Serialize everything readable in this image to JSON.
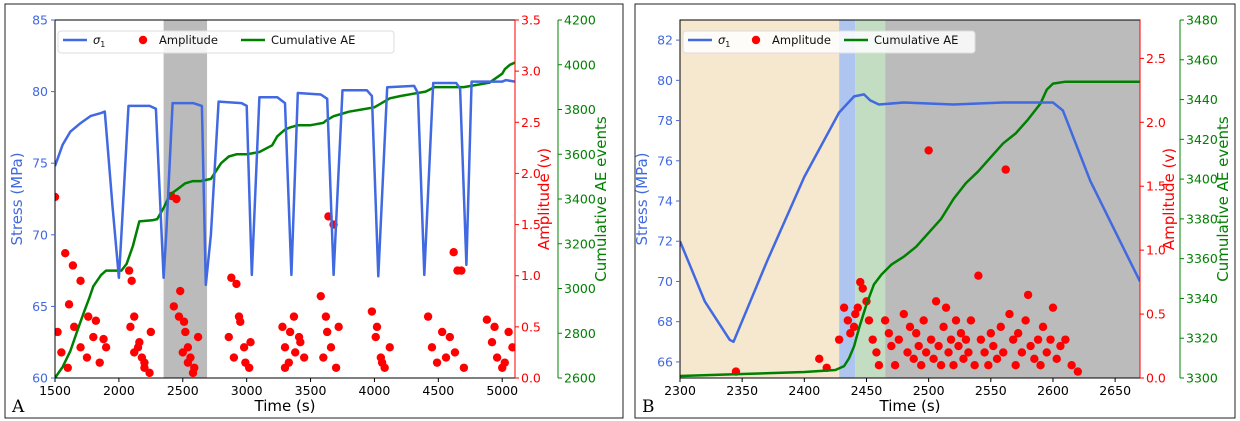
{
  "colors": {
    "stress": "#4169e1",
    "amplitude": "#ff0000",
    "cumulative": "#008000",
    "shade_gray": "#bbbbbb",
    "shade_tan": "#f6e7cf",
    "shade_blue": "#aec6ef",
    "shade_green": "#c3ddc3"
  },
  "chart_data": [
    {
      "panel_label": "A",
      "type": "line",
      "xlabel": "Time (s)",
      "xlim": [
        1500,
        5100
      ],
      "xticks": [
        1500,
        2000,
        2500,
        3000,
        3500,
        4000,
        4500,
        5000
      ],
      "y_left": {
        "label": "Stress (MPa)",
        "lim": [
          60,
          85
        ],
        "ticks": [
          60,
          65,
          70,
          75,
          80,
          85
        ]
      },
      "y_right_1": {
        "label": "Amplitude (v)",
        "lim": [
          0,
          3.5
        ],
        "ticks": [
          "0.0",
          "0.5",
          "1.0",
          "1.5",
          "2.0",
          "2.5",
          "3.0",
          "3.5"
        ]
      },
      "y_right_2": {
        "label": "Cumulative AE events",
        "lim": [
          2600,
          4200
        ],
        "ticks": [
          2600,
          2800,
          3000,
          3200,
          3400,
          3600,
          3800,
          4000,
          4200
        ]
      },
      "legend": [
        "σ1",
        "Amplitude",
        "Cumulative AE"
      ],
      "legend_position": "upper",
      "shaded_regions": [
        {
          "x": [
            2350,
            2690
          ],
          "color": "gray"
        }
      ],
      "series": [
        {
          "name": "σ1",
          "axis": "left",
          "style": "line",
          "x": [
            1500,
            1560,
            1620,
            1700,
            1780,
            1860,
            1890,
            1950,
            2000,
            2020,
            2075,
            2240,
            2290,
            2350,
            2370,
            2420,
            2580,
            2650,
            2680,
            2720,
            2780,
            2960,
            3000,
            3040,
            3100,
            3240,
            3300,
            3350,
            3400,
            3580,
            3630,
            3680,
            3750,
            3940,
            3980,
            4030,
            4100,
            4310,
            4340,
            4390,
            4460,
            4640,
            4670,
            4720,
            4760,
            5000,
            5030,
            5100
          ],
          "y": [
            74.8,
            76.3,
            77.2,
            77.8,
            78.3,
            78.5,
            78.6,
            72.0,
            67.0,
            70.0,
            79.0,
            79.0,
            78.8,
            67.0,
            70.0,
            79.2,
            79.2,
            79.0,
            66.5,
            70.0,
            79.3,
            79.2,
            79.0,
            67.2,
            79.6,
            79.6,
            79.2,
            67.2,
            79.9,
            79.8,
            79.5,
            67.2,
            80.1,
            80.1,
            79.7,
            67.1,
            80.3,
            80.4,
            79.9,
            67.2,
            80.6,
            80.6,
            80.2,
            67.9,
            80.7,
            80.7,
            80.8,
            80.7
          ]
        },
        {
          "name": "Amplitude",
          "axis": "right_1",
          "style": "points",
          "x": [
            1500,
            1580,
            1640,
            1610,
            1700,
            1760,
            1820,
            1880,
            1520,
            1550,
            1600,
            1650,
            1700,
            1750,
            1800,
            1850,
            1900,
            2080,
            2100,
            2120,
            2150,
            2180,
            2200,
            2250,
            2090,
            2120,
            2160,
            2200,
            2240,
            2410,
            2450,
            2480,
            2510,
            2540,
            2560,
            2590,
            2620,
            2430,
            2470,
            2500,
            2540,
            2580,
            2520,
            2880,
            2920,
            2950,
            2980,
            3020,
            2860,
            2900,
            2940,
            2990,
            3030,
            3280,
            3300,
            3330,
            3370,
            3410,
            3450,
            3300,
            3340,
            3380,
            3420,
            3580,
            3620,
            3660,
            3700,
            3630,
            3600,
            3640,
            3680,
            3720,
            3980,
            4010,
            4050,
            4080,
            4120,
            4020,
            4060,
            4420,
            4450,
            4490,
            4530,
            4560,
            4620,
            4650,
            4680,
            4590,
            4630,
            4700,
            4880,
            4920,
            4960,
            5000,
            5050,
            5080,
            4940,
            5020
          ],
          "y": [
            1.77,
            1.22,
            1.1,
            0.72,
            0.95,
            0.6,
            0.56,
            0.38,
            0.45,
            0.25,
            0.1,
            0.5,
            0.3,
            0.2,
            0.4,
            0.15,
            0.3,
            1.05,
            0.95,
            0.6,
            0.3,
            0.2,
            0.1,
            0.45,
            0.5,
            0.25,
            0.35,
            0.15,
            0.05,
            1.78,
            1.75,
            0.85,
            0.55,
            0.3,
            0.2,
            0.1,
            0.4,
            0.7,
            0.6,
            0.25,
            0.15,
            0.05,
            0.45,
            0.98,
            0.92,
            0.55,
            0.3,
            0.1,
            0.4,
            0.2,
            0.6,
            0.15,
            0.35,
            0.5,
            0.3,
            0.15,
            0.6,
            0.4,
            0.2,
            0.1,
            0.45,
            0.25,
            0.35,
            0.8,
            0.6,
            0.3,
            0.1,
            0.45,
            0.2,
            1.58,
            1.5,
            0.5,
            0.65,
            0.4,
            0.2,
            0.1,
            0.3,
            0.5,
            0.15,
            0.6,
            0.3,
            0.15,
            0.45,
            0.2,
            1.23,
            1.05,
            1.05,
            0.4,
            0.25,
            0.1,
            0.57,
            0.35,
            0.2,
            0.1,
            0.45,
            0.3,
            0.5,
            0.15
          ]
        },
        {
          "name": "Cumulative AE",
          "axis": "right_2",
          "style": "line",
          "x": [
            1500,
            1560,
            1620,
            1680,
            1730,
            1770,
            1800,
            1860,
            1900,
            1960,
            2020,
            2060,
            2110,
            2160,
            2260,
            2300,
            2350,
            2400,
            2450,
            2520,
            2580,
            2640,
            2720,
            2800,
            2860,
            2920,
            3000,
            3100,
            3200,
            3240,
            3300,
            3340,
            3400,
            3500,
            3600,
            3620,
            3680,
            3740,
            3800,
            3900,
            4000,
            4060,
            4120,
            4200,
            4300,
            4400,
            4470,
            4520,
            4600,
            4700,
            4800,
            4900,
            4950,
            5000,
            5020,
            5060,
            5100
          ],
          "y": [
            2600,
            2650,
            2720,
            2820,
            2900,
            2960,
            3010,
            3060,
            3080,
            3080,
            3080,
            3110,
            3190,
            3300,
            3305,
            3310,
            3360,
            3420,
            3440,
            3470,
            3480,
            3480,
            3490,
            3560,
            3590,
            3600,
            3600,
            3610,
            3640,
            3680,
            3710,
            3720,
            3730,
            3730,
            3740,
            3750,
            3770,
            3780,
            3790,
            3800,
            3810,
            3830,
            3850,
            3860,
            3870,
            3880,
            3900,
            3900,
            3900,
            3900,
            3910,
            3920,
            3940,
            3960,
            3980,
            4000,
            4010
          ]
        }
      ]
    },
    {
      "panel_label": "B",
      "type": "line",
      "xlabel": "Time (s)",
      "xlim": [
        2300,
        2670
      ],
      "xticks": [
        2300,
        2350,
        2400,
        2450,
        2500,
        2550,
        2600,
        2650
      ],
      "y_left": {
        "label": "Stress (MPa)",
        "lim": [
          65.2,
          83
        ],
        "ticks": [
          66,
          68,
          70,
          72,
          74,
          76,
          78,
          80,
          82
        ]
      },
      "y_right_1": {
        "label": "Amplitude (v)",
        "lim": [
          0,
          2.8
        ],
        "ticks": [
          "0.0",
          "0.5",
          "1.0",
          "1.5",
          "2.0",
          "2.5"
        ]
      },
      "y_right_2": {
        "label": "Cumulative AE events",
        "lim": [
          3300,
          3480
        ],
        "ticks": [
          3300,
          3320,
          3340,
          3360,
          3380,
          3400,
          3420,
          3440,
          3460,
          3480
        ]
      },
      "legend": [
        "σ1",
        "Amplitude",
        "Cumulative AE"
      ],
      "legend_position": "upper",
      "shaded_regions": [
        {
          "x": [
            2300,
            2428
          ],
          "color": "tan"
        },
        {
          "x": [
            2428,
            2441
          ],
          "color": "blue"
        },
        {
          "x": [
            2441,
            2465
          ],
          "color": "green"
        },
        {
          "x": [
            2465,
            2670
          ],
          "color": "gray"
        }
      ],
      "series": [
        {
          "name": "σ1",
          "axis": "left",
          "style": "line",
          "x": [
            2300,
            2320,
            2340,
            2343,
            2370,
            2400,
            2428,
            2440,
            2448,
            2453,
            2460,
            2480,
            2520,
            2560,
            2600,
            2608,
            2630,
            2650,
            2670
          ],
          "y": [
            72.0,
            69.0,
            67.1,
            67.0,
            71.0,
            75.2,
            78.4,
            79.2,
            79.3,
            79.0,
            78.8,
            78.9,
            78.8,
            78.9,
            78.9,
            78.5,
            75.0,
            72.5,
            70.0
          ]
        },
        {
          "name": "Amplitude",
          "axis": "right_1",
          "style": "points",
          "x": [
            2345,
            2412,
            2418,
            2428,
            2432,
            2435,
            2437,
            2440,
            2441,
            2443,
            2445,
            2447,
            2450,
            2452,
            2455,
            2458,
            2460,
            2465,
            2468,
            2470,
            2473,
            2476,
            2480,
            2483,
            2485,
            2488,
            2490,
            2492,
            2494,
            2496,
            2498,
            2500,
            2502,
            2504,
            2506,
            2508,
            2510,
            2512,
            2514,
            2516,
            2518,
            2520,
            2522,
            2524,
            2526,
            2528,
            2530,
            2532,
            2534,
            2537,
            2540,
            2542,
            2545,
            2548,
            2550,
            2552,
            2555,
            2558,
            2560,
            2562,
            2565,
            2568,
            2570,
            2572,
            2575,
            2578,
            2580,
            2582,
            2585,
            2588,
            2590,
            2592,
            2595,
            2598,
            2600,
            2603,
            2606,
            2610,
            2615,
            2620
          ],
          "y": [
            0.05,
            0.15,
            0.08,
            0.3,
            0.55,
            0.45,
            0.35,
            0.4,
            0.5,
            0.55,
            0.75,
            0.7,
            0.6,
            0.45,
            0.3,
            0.2,
            0.1,
            0.45,
            0.35,
            0.25,
            0.1,
            0.3,
            0.5,
            0.2,
            0.4,
            0.15,
            0.35,
            0.25,
            0.1,
            0.45,
            0.2,
            1.78,
            0.3,
            0.15,
            0.6,
            0.25,
            0.1,
            0.4,
            0.55,
            0.2,
            0.3,
            0.1,
            0.45,
            0.25,
            0.35,
            0.15,
            0.3,
            0.2,
            0.45,
            0.1,
            0.8,
            0.3,
            0.2,
            0.1,
            0.35,
            0.25,
            0.15,
            0.4,
            0.2,
            1.63,
            0.5,
            0.3,
            0.1,
            0.35,
            0.2,
            0.45,
            0.65,
            0.25,
            0.15,
            0.3,
            0.1,
            0.4,
            0.2,
            0.3,
            0.55,
            0.15,
            0.25,
            0.3,
            0.1,
            0.05
          ]
        },
        {
          "name": "Cumulative AE",
          "axis": "right_2",
          "style": "line",
          "x": [
            2300,
            2350,
            2400,
            2425,
            2432,
            2436,
            2440,
            2444,
            2450,
            2456,
            2462,
            2470,
            2480,
            2490,
            2500,
            2510,
            2520,
            2530,
            2540,
            2550,
            2560,
            2570,
            2580,
            2590,
            2595,
            2600,
            2610,
            2620,
            2640,
            2660,
            2670
          ],
          "y": [
            3301,
            3302,
            3303,
            3304,
            3306,
            3310,
            3316,
            3325,
            3337,
            3347,
            3352,
            3357,
            3361,
            3366,
            3373,
            3380,
            3390,
            3398,
            3404,
            3411,
            3418,
            3423,
            3430,
            3438,
            3445,
            3448,
            3449,
            3449,
            3449,
            3449,
            3449
          ]
        }
      ]
    }
  ]
}
